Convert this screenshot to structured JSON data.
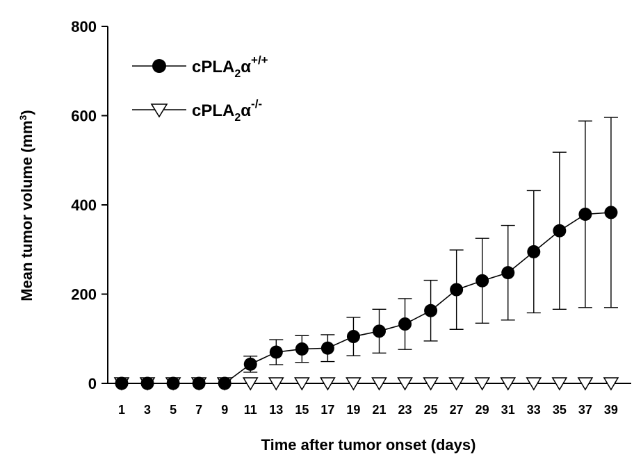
{
  "chart_data": {
    "type": "line",
    "xlabel": "Time after tumor onset (days)",
    "ylabel_main": "Mean tumor volume (mm",
    "ylabel_sup": "3",
    "ylabel_end": ")",
    "x": [
      1,
      3,
      5,
      7,
      9,
      11,
      13,
      15,
      17,
      19,
      21,
      23,
      25,
      27,
      29,
      31,
      33,
      35,
      37,
      39
    ],
    "xticks": [
      "1",
      "3",
      "5",
      "7",
      "9",
      "11",
      "13",
      "15",
      "17",
      "19",
      "21",
      "23",
      "25",
      "27",
      "29",
      "31",
      "33",
      "35",
      "37",
      "39"
    ],
    "yticks": [
      "0",
      "200",
      "400",
      "600",
      "800"
    ],
    "ylim": [
      0,
      800
    ],
    "grid": false,
    "legend_position": "top-left",
    "series": [
      {
        "name_base": "cPLA",
        "name_sub": "2",
        "name_greek": "α",
        "name_sup": "+/+",
        "marker": "filled-circle",
        "color": "#000000",
        "values": [
          0,
          0,
          0,
          0,
          0,
          43,
          70,
          77,
          79,
          105,
          117,
          133,
          163,
          210,
          230,
          248,
          295,
          342,
          379,
          383
        ],
        "err_upper": [
          0,
          0,
          0,
          0,
          0,
          61,
          98,
          107,
          109,
          148,
          166,
          190,
          231,
          299,
          325,
          354,
          432,
          518,
          588,
          596
        ],
        "err_lower": [
          0,
          0,
          0,
          0,
          0,
          25,
          42,
          47,
          49,
          62,
          68,
          76,
          95,
          121,
          135,
          142,
          158,
          166,
          170,
          170
        ]
      },
      {
        "name_base": "cPLA",
        "name_sub": "2",
        "name_greek": "α",
        "name_sup": "-/-",
        "marker": "open-triangle-down",
        "color": "#000000",
        "values": [
          0,
          0,
          0,
          0,
          0,
          0,
          0,
          0,
          0,
          0,
          0,
          0,
          0,
          0,
          0,
          0,
          0,
          0,
          0,
          0
        ]
      }
    ]
  }
}
